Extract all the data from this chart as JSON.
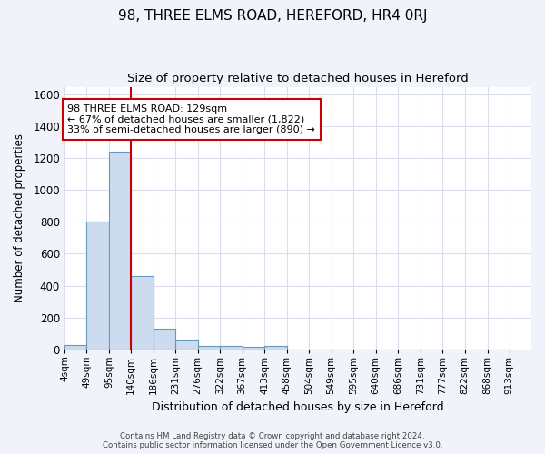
{
  "title": "98, THREE ELMS ROAD, HEREFORD, HR4 0RJ",
  "subtitle": "Size of property relative to detached houses in Hereford",
  "xlabel": "Distribution of detached houses by size in Hereford",
  "ylabel": "Number of detached properties",
  "bin_labels": [
    "4sqm",
    "49sqm",
    "95sqm",
    "140sqm",
    "186sqm",
    "231sqm",
    "276sqm",
    "322sqm",
    "367sqm",
    "413sqm",
    "458sqm",
    "504sqm",
    "549sqm",
    "595sqm",
    "640sqm",
    "686sqm",
    "731sqm",
    "777sqm",
    "822sqm",
    "868sqm",
    "913sqm"
  ],
  "bar_heights": [
    25,
    800,
    1240,
    460,
    130,
    60,
    20,
    20,
    15,
    20,
    0,
    0,
    0,
    0,
    0,
    0,
    0,
    0,
    0,
    0
  ],
  "bar_color": "#ccdcee",
  "bar_edge_color": "#6699bb",
  "ylim": [
    0,
    1650
  ],
  "yticks": [
    0,
    200,
    400,
    600,
    800,
    1000,
    1200,
    1400,
    1600
  ],
  "property_size_bin": 3,
  "red_line_x": 140,
  "red_line_color": "#cc0000",
  "annotation_text": "98 THREE ELMS ROAD: 129sqm\n← 67% of detached houses are smaller (1,822)\n33% of semi-detached houses are larger (890) →",
  "annotation_box_color": "#ffffff",
  "annotation_box_edge_color": "#cc0000",
  "footer_line1": "Contains HM Land Registry data © Crown copyright and database right 2024.",
  "footer_line2": "Contains public sector information licensed under the Open Government Licence v3.0.",
  "fig_background_color": "#f0f4fa",
  "plot_background_color": "#ffffff",
  "grid_color": "#ddddee",
  "title_fontsize": 11,
  "subtitle_fontsize": 9.5
}
